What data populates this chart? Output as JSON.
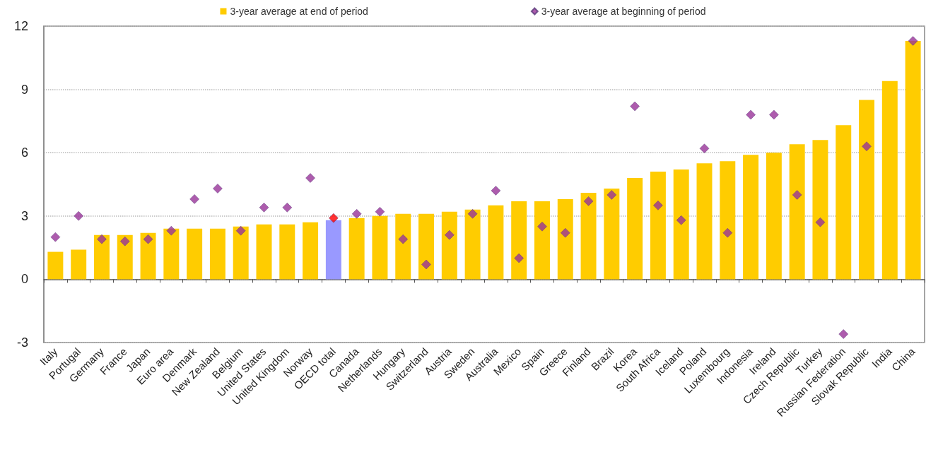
{
  "chart_data": {
    "type": "bar",
    "categories": [
      "Italy",
      "Portugal",
      "Germany",
      "France",
      "Japan",
      "Euro area",
      "Denmark",
      "New Zealand",
      "Belgium",
      "United States",
      "United Kingdom",
      "Norway",
      "OECD total",
      "Canada",
      "Netherlands",
      "Hungary",
      "Switzerland",
      "Austria",
      "Sweden",
      "Australia",
      "Mexico",
      "Spain",
      "Greece",
      "Finland",
      "Brazil",
      "Korea",
      "South Africa",
      "Iceland",
      "Poland",
      "Luxembourg",
      "Indonesia",
      "Ireland",
      "Czech Republic",
      "Turkey",
      "Russian Federation",
      "Slovak Republic",
      "India",
      "China"
    ],
    "series": [
      {
        "name": "3-year average at end of period",
        "color": "#ffcc00",
        "colors": [
          "#ffcc00",
          "#ffcc00",
          "#ffcc00",
          "#ffcc00",
          "#ffcc00",
          "#ffcc00",
          "#ffcc00",
          "#ffcc00",
          "#ffcc00",
          "#ffcc00",
          "#ffcc00",
          "#ffcc00",
          "#9999ff",
          "#ffcc00",
          "#ffcc00",
          "#ffcc00",
          "#ffcc00",
          "#ffcc00",
          "#ffcc00",
          "#ffcc00",
          "#ffcc00",
          "#ffcc00",
          "#ffcc00",
          "#ffcc00",
          "#ffcc00",
          "#ffcc00",
          "#ffcc00",
          "#ffcc00",
          "#ffcc00",
          "#ffcc00",
          "#ffcc00",
          "#ffcc00",
          "#ffcc00",
          "#ffcc00",
          "#ffcc00",
          "#ffcc00",
          "#ffcc00",
          "#ffcc00"
        ],
        "values": [
          1.3,
          1.4,
          2.1,
          2.1,
          2.2,
          2.4,
          2.4,
          2.4,
          2.5,
          2.6,
          2.6,
          2.7,
          2.8,
          2.9,
          3.0,
          3.1,
          3.1,
          3.2,
          3.3,
          3.5,
          3.7,
          3.7,
          3.8,
          4.1,
          4.3,
          4.8,
          5.1,
          5.2,
          5.5,
          5.6,
          5.9,
          6.0,
          6.4,
          6.6,
          7.3,
          8.5,
          9.4,
          11.3
        ]
      },
      {
        "name": "3-year average at beginning of period",
        "type": "scatter",
        "marker": "diamond",
        "color": "#993399",
        "colors": [
          "#993399",
          "#993399",
          "#993399",
          "#993399",
          "#993399",
          "#993399",
          "#993399",
          "#993399",
          "#993399",
          "#993399",
          "#993399",
          "#993399",
          "#ff0000",
          "#993399",
          "#993399",
          "#993399",
          "#993399",
          "#993399",
          "#993399",
          "#993399",
          "#993399",
          "#993399",
          "#993399",
          "#993399",
          "#993399",
          "#993399",
          "#993399",
          "#993399",
          "#993399",
          "#993399",
          "#993399",
          "#993399",
          "#993399",
          "#993399",
          "#993399",
          "#993399",
          "#993399",
          "#993399"
        ],
        "x": [
          "Italy",
          "Portugal",
          "Germany",
          "France",
          "Japan",
          "Euro area",
          "Denmark",
          "New Zealand",
          "Belgium",
          "United States",
          "United Kingdom",
          "Norway",
          "OECD total",
          "Canada",
          "Netherlands",
          "Hungary",
          "Switzerland",
          "Austria",
          "Sweden",
          "Australia",
          "Mexico",
          "Spain",
          "Greece",
          "Finland",
          "Brazil",
          "Korea",
          "South Africa",
          "Iceland",
          "Poland",
          "Luxembourg",
          "Indonesia",
          "Ireland",
          "Czech Republic",
          "Turkey",
          "Russian Federation",
          "Slovak Republic",
          "India",
          "China"
        ],
        "values": [
          2.0,
          3.0,
          1.9,
          1.8,
          1.9,
          2.3,
          3.8,
          4.3,
          2.3,
          3.4,
          3.4,
          4.8,
          2.9,
          3.1,
          3.2,
          1.9,
          0.7,
          2.1,
          3.1,
          4.2,
          1.0,
          2.5,
          2.2,
          3.7,
          4.0,
          8.2,
          3.5,
          2.8,
          6.2,
          2.2,
          7.8,
          7.8,
          4.0,
          2.7,
          -2.6,
          6.3,
          null,
          11.3
        ]
      }
    ],
    "ylim": [
      -3,
      12
    ],
    "yticks": [
      -3,
      0,
      3,
      6,
      9,
      12
    ],
    "grid": "y",
    "legend": "top"
  }
}
